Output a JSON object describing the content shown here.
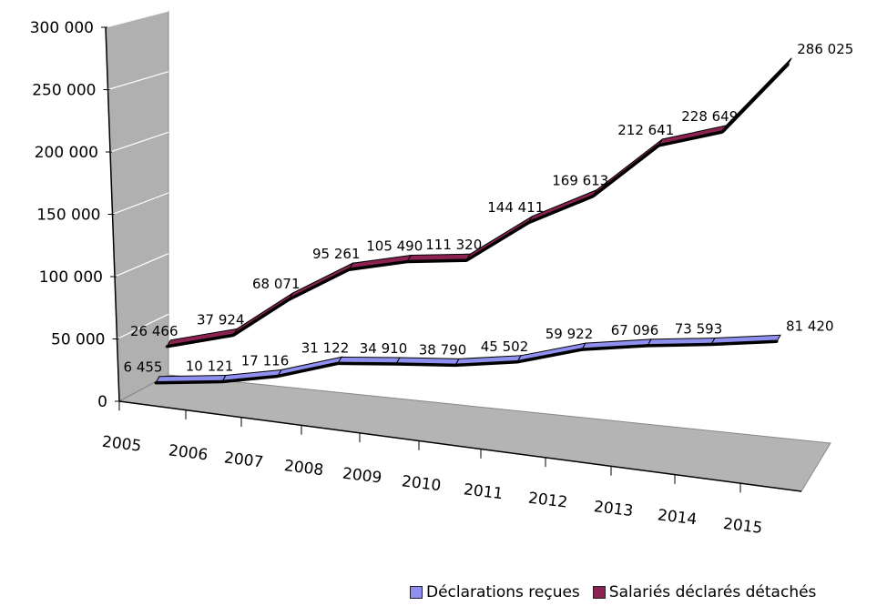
{
  "chart_data": {
    "type": "line",
    "subtype": "3d-ribbon-line",
    "categories": [
      "2005",
      "2006",
      "2007",
      "2008",
      "2009",
      "2010",
      "2011",
      "2012",
      "2013",
      "2014",
      "2015"
    ],
    "series": [
      {
        "name": "Déclarations reçues",
        "color": "#8f8fef",
        "values": [
          6455,
          10121,
          17116,
          31122,
          34910,
          38790,
          45502,
          59922,
          67096,
          73593,
          81420
        ],
        "labels": [
          "6 455",
          "10 121",
          "17 116",
          "31 122",
          "34 910",
          "38 790",
          "45 502",
          "59 922",
          "67 096",
          "73 593",
          "81 420"
        ]
      },
      {
        "name": "Salariés déclarés détachés",
        "color": "#8b2252",
        "values": [
          26466,
          37924,
          68071,
          95261,
          105490,
          111320,
          144411,
          169613,
          212641,
          228649,
          286025
        ],
        "labels": [
          "26 466",
          "37 924",
          "68 071",
          "95 261",
          "105 490",
          "111 320",
          "144 411",
          "169 613",
          "212 641",
          "228 649",
          "286 025"
        ]
      }
    ],
    "ylim": [
      0,
      300000
    ],
    "yticks": [
      "0",
      "50 000",
      "100 000",
      "150 000",
      "200 000",
      "250 000",
      "300 000"
    ],
    "title": "",
    "xlabel": "",
    "ylabel": "",
    "legend_position": "bottom",
    "grid": true
  }
}
